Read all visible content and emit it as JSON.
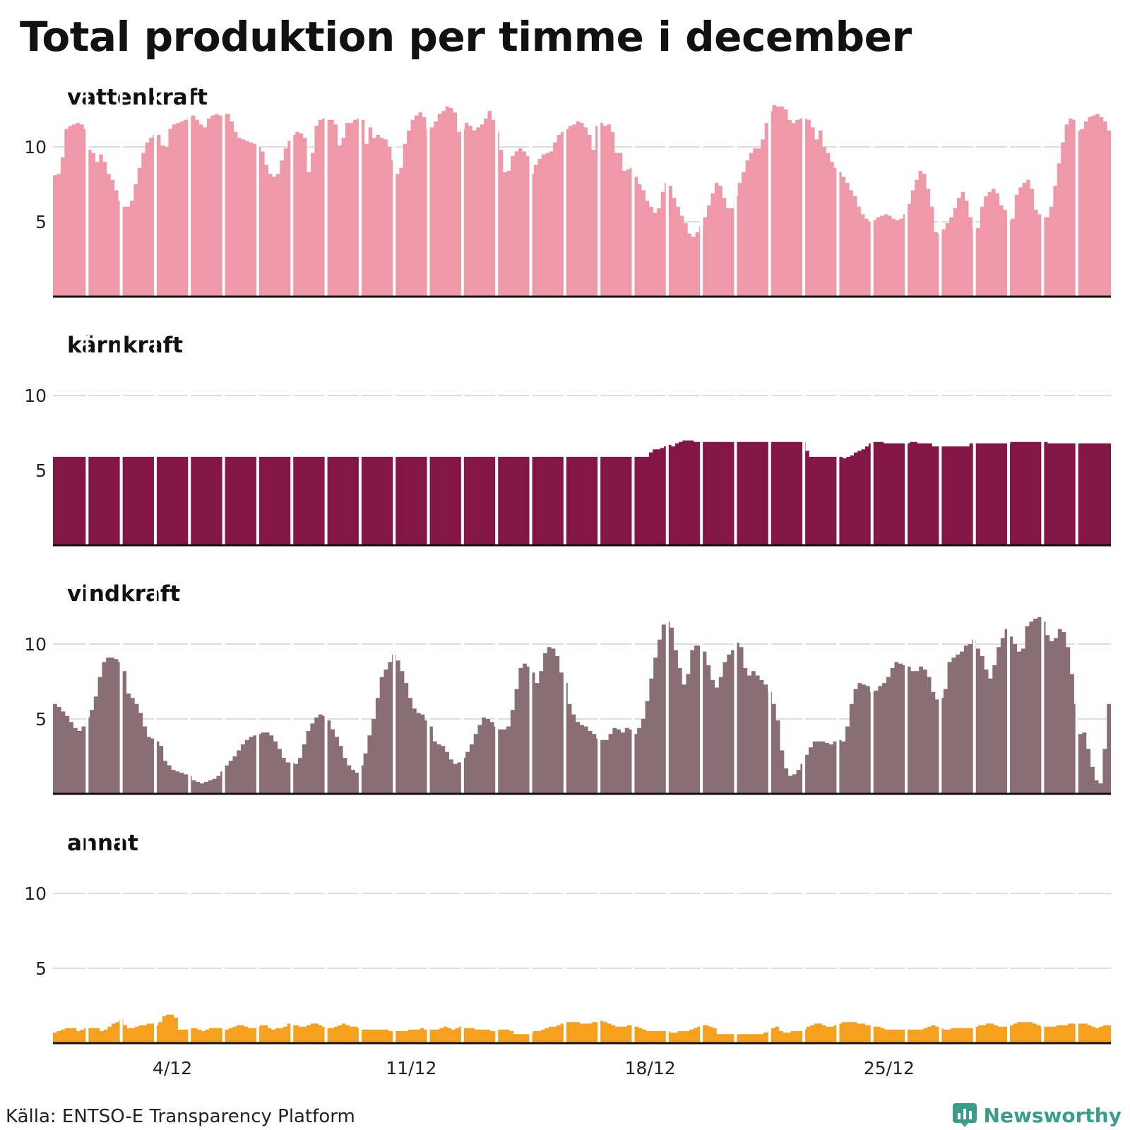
{
  "title": "Total produktion per timme i december",
  "source": "Källa: ENTSO-E Transparency Platform",
  "brand": "Newsworthy",
  "chart_data": {
    "type": "area",
    "x_unit": "day of December (hourly resolution, values sampled every 2 hours)",
    "xlim": [
      1,
      32
    ],
    "ylim": [
      0,
      13
    ],
    "y_ticks": [
      5,
      10
    ],
    "x_ticks": [
      {
        "value": 4.5,
        "label": "4/12"
      },
      {
        "value": 11.5,
        "label": "11/12"
      },
      {
        "value": 18.5,
        "label": "18/12"
      },
      {
        "value": 25.5,
        "label": "25/12"
      }
    ],
    "grid": true,
    "ylabel": "",
    "xlabel": "",
    "series": [
      {
        "name": "vattenkraft",
        "color": "#ef99a8",
        "values": [
          8.1,
          8.2,
          9.3,
          11.2,
          11.4,
          11.5,
          11.6,
          11.5,
          11.2,
          9.8,
          9.6,
          9.0,
          9.5,
          9.0,
          8.2,
          7.8,
          7.1,
          6.4,
          6.0,
          6.0,
          6.4,
          7.5,
          8.6,
          9.6,
          10.3,
          10.6,
          10.8,
          10.8,
          10.1,
          10.0,
          11.2,
          11.5,
          11.6,
          11.7,
          11.8,
          12.0,
          12.1,
          11.8,
          11.5,
          11.3,
          11.9,
          12.1,
          12.2,
          12.1,
          12.2,
          12.2,
          11.7,
          11.0,
          10.6,
          10.5,
          10.4,
          10.3,
          10.2,
          10.0,
          9.7,
          8.8,
          8.2,
          8.0,
          8.2,
          9.1,
          9.9,
          10.4,
          10.8,
          11.0,
          10.9,
          10.6,
          8.3,
          9.6,
          11.4,
          11.8,
          11.9,
          11.8,
          11.8,
          11.5,
          10.1,
          10.6,
          11.6,
          11.6,
          11.8,
          11.9,
          11.8,
          10.2,
          11.3,
          10.6,
          10.8,
          10.6,
          10.5,
          10.0,
          9.1,
          8.2,
          8.6,
          10.2,
          11.1,
          11.8,
          12.1,
          12.3,
          12.0,
          11.2,
          11.3,
          11.7,
          12.2,
          12.4,
          12.7,
          12.6,
          12.3,
          11.0,
          11.2,
          11.6,
          11.4,
          11.1,
          11.3,
          11.5,
          11.9,
          12.4,
          11.8,
          11.0,
          9.8,
          8.3,
          8.4,
          9.4,
          9.7,
          9.9,
          9.7,
          9.4,
          8.2,
          8.8,
          9.2,
          9.5,
          9.6,
          9.7,
          10.3,
          10.8,
          11.0,
          11.2,
          11.4,
          11.5,
          11.7,
          11.6,
          11.3,
          10.8,
          9.8,
          11.4,
          11.6,
          11.4,
          11.5,
          11.0,
          9.6,
          9.6,
          8.4,
          8.5,
          8.6,
          8.0,
          7.5,
          7.1,
          6.4,
          6.0,
          5.6,
          5.9,
          7.0,
          7.6,
          7.4,
          6.6,
          6.0,
          5.4,
          4.9,
          4.2,
          4.0,
          4.3,
          4.7,
          5.3,
          6.1,
          6.9,
          7.6,
          7.4,
          6.6,
          5.9,
          5.9,
          6.7,
          7.6,
          8.3,
          9.1,
          9.6,
          9.9,
          9.9,
          10.5,
          11.6,
          12.4,
          12.8,
          12.7,
          12.7,
          12.5,
          11.8,
          11.6,
          11.8,
          11.9,
          11.9,
          11.8,
          11.3,
          10.5,
          11.1,
          10.0,
          9.6,
          9.0,
          8.6,
          8.3,
          8.0,
          7.6,
          7.1,
          6.7,
          6.0,
          5.5,
          5.2,
          5.0,
          5.1,
          5.3,
          5.4,
          5.5,
          5.4,
          5.2,
          5.1,
          5.2,
          5.5,
          6.2,
          7.1,
          7.8,
          8.4,
          8.2,
          7.2,
          6.0,
          4.3,
          4.2,
          4.5,
          4.9,
          5.3,
          5.9,
          6.6,
          7.0,
          6.4,
          5.3,
          4.5,
          4.6,
          6.0,
          6.7,
          7.0,
          7.2,
          6.9,
          6.1,
          5.8,
          5.1,
          5.2,
          6.8,
          7.3,
          7.6,
          7.8,
          7.2,
          5.8,
          5.5,
          5.3,
          5.3,
          6.0,
          7.4,
          8.9,
          10.3,
          11.5,
          11.9,
          11.8,
          11.1,
          11.2,
          11.7,
          12.0,
          12.1,
          12.2,
          12.0,
          11.7,
          11.1
        ]
      },
      {
        "name": "kärnkraft",
        "color": "#841646",
        "values": [
          5.9,
          5.9,
          5.9,
          5.9,
          5.9,
          5.9,
          5.9,
          5.9,
          5.9,
          5.9,
          5.9,
          5.9,
          5.9,
          5.9,
          5.9,
          5.9,
          5.9,
          5.9,
          5.9,
          5.9,
          5.9,
          5.9,
          5.9,
          5.9,
          5.9,
          5.9,
          5.9,
          5.9,
          5.9,
          5.9,
          5.9,
          5.9,
          5.9,
          5.9,
          5.9,
          5.9,
          5.9,
          5.9,
          5.9,
          5.9,
          5.9,
          5.9,
          5.9,
          5.9,
          5.9,
          5.9,
          5.9,
          5.9,
          5.9,
          5.9,
          5.9,
          5.9,
          5.9,
          5.9,
          5.9,
          5.9,
          5.9,
          5.9,
          5.9,
          5.9,
          5.9,
          5.9,
          5.9,
          5.9,
          5.9,
          5.9,
          5.9,
          5.9,
          5.9,
          5.9,
          5.9,
          5.9,
          5.9,
          5.9,
          5.9,
          5.9,
          5.9,
          5.9,
          5.9,
          5.9,
          5.9,
          5.9,
          5.9,
          5.9,
          5.9,
          5.9,
          5.9,
          5.9,
          5.9,
          5.9,
          5.9,
          5.9,
          5.9,
          5.9,
          5.9,
          5.9,
          5.9,
          5.9,
          5.9,
          5.9,
          5.9,
          5.9,
          5.9,
          5.9,
          5.9,
          5.9,
          5.9,
          5.9,
          5.9,
          5.9,
          5.9,
          5.9,
          5.9,
          5.9,
          5.9,
          5.9,
          5.9,
          5.9,
          5.9,
          5.9,
          5.9,
          5.9,
          5.9,
          5.9,
          5.9,
          5.9,
          5.9,
          5.9,
          5.9,
          5.9,
          5.9,
          5.9,
          5.9,
          5.9,
          5.9,
          5.9,
          5.9,
          5.9,
          5.9,
          5.9,
          5.9,
          5.9,
          5.9,
          5.9,
          5.9,
          5.9,
          5.9,
          5.9,
          5.9,
          5.9,
          5.9,
          5.9,
          5.9,
          5.9,
          5.9,
          5.9,
          5.9,
          5.9,
          5.9,
          5.9,
          6.2,
          6.4,
          6.4,
          6.5,
          6.6,
          6.7,
          6.6,
          6.8,
          6.9,
          7.0,
          7.0,
          7.0,
          6.9,
          6.9,
          6.9,
          6.9,
          6.9,
          6.9,
          6.9,
          6.9,
          6.9,
          6.9,
          6.9,
          6.9,
          6.9,
          6.9,
          6.9,
          6.9,
          6.9,
          6.9,
          6.9,
          6.9,
          6.9,
          6.9,
          6.9,
          6.9,
          6.9,
          6.9,
          6.9,
          6.9,
          6.9,
          6.9,
          6.3,
          5.9,
          5.9,
          5.9,
          5.9,
          5.9,
          5.9,
          5.9,
          5.9,
          5.9,
          5.8,
          5.9,
          6.0,
          6.2,
          6.3,
          6.4,
          6.6,
          6.8,
          6.9,
          6.9,
          6.9,
          6.8,
          6.8,
          6.8,
          6.8,
          6.8,
          6.8,
          6.8,
          6.9,
          6.9,
          6.8,
          6.8,
          6.8,
          6.8,
          6.6,
          6.6,
          6.6,
          6.6,
          6.6,
          6.6,
          6.6,
          6.6,
          6.6,
          6.6,
          6.8,
          6.8,
          6.8,
          6.8,
          6.8,
          6.8,
          6.8,
          6.8,
          6.8,
          6.8,
          6.8,
          6.9,
          6.9,
          6.9,
          6.9,
          6.9,
          6.9,
          6.9,
          6.9,
          6.9,
          6.9,
          6.8,
          6.8,
          6.8,
          6.8,
          6.8,
          6.8,
          6.8,
          6.8,
          6.8,
          6.8,
          6.8,
          6.8,
          6.8,
          6.8,
          6.8,
          6.8,
          6.8
        ]
      },
      {
        "name": "vindkraft",
        "color": "#8a6e75",
        "values": [
          6.0,
          5.8,
          5.5,
          5.2,
          4.8,
          4.4,
          4.2,
          4.5,
          5.1,
          5.6,
          6.5,
          7.8,
          8.8,
          9.1,
          9.1,
          9.0,
          8.8,
          8.2,
          6.7,
          6.4,
          6.0,
          5.4,
          4.5,
          3.8,
          3.7,
          3.5,
          3.2,
          2.2,
          1.9,
          1.6,
          1.5,
          1.4,
          1.3,
          1.2,
          0.9,
          0.8,
          0.7,
          0.8,
          0.9,
          1.0,
          1.2,
          1.5,
          1.9,
          2.2,
          2.5,
          2.9,
          3.3,
          3.6,
          3.8,
          3.9,
          4.0,
          4.1,
          4.1,
          3.9,
          3.5,
          3.0,
          2.4,
          2.1,
          2.1,
          2.0,
          2.4,
          3.3,
          4.2,
          4.7,
          5.1,
          5.3,
          5.2,
          4.9,
          4.3,
          3.8,
          3.2,
          2.4,
          1.9,
          1.6,
          1.4,
          1.9,
          2.7,
          3.9,
          5.0,
          6.4,
          7.8,
          8.3,
          8.8,
          9.3,
          8.9,
          8.2,
          7.4,
          6.4,
          5.7,
          5.4,
          5.3,
          4.9,
          4.5,
          3.5,
          3.3,
          3.2,
          2.8,
          2.3,
          2.0,
          2.1,
          2.4,
          2.8,
          3.3,
          4.0,
          4.6,
          5.1,
          5.0,
          4.8,
          4.5,
          4.3,
          4.3,
          4.5,
          5.6,
          7.0,
          8.4,
          8.7,
          8.5,
          8.1,
          7.4,
          8.2,
          9.4,
          9.8,
          9.7,
          9.2,
          8.1,
          7.4,
          6.0,
          5.3,
          4.8,
          4.6,
          4.5,
          4.2,
          4.0,
          3.7,
          3.6,
          3.6,
          4.0,
          4.4,
          4.3,
          4.1,
          4.4,
          4.3,
          4.0,
          4.4,
          5.0,
          6.2,
          7.7,
          9.1,
          10.3,
          11.3,
          11.5,
          11.1,
          9.6,
          8.4,
          7.3,
          8.0,
          9.6,
          9.9,
          9.9,
          9.5,
          8.6,
          7.6,
          7.1,
          7.8,
          8.8,
          9.3,
          9.6,
          10.1,
          9.8,
          8.4,
          7.9,
          8.2,
          7.9,
          7.6,
          7.3,
          6.8,
          6.0,
          4.9,
          2.9,
          1.7,
          1.2,
          1.3,
          1.6,
          2.0,
          2.6,
          3.1,
          3.5,
          3.5,
          3.5,
          3.4,
          3.3,
          3.5,
          3.6,
          3.5,
          4.5,
          6.0,
          7.0,
          7.4,
          7.3,
          7.2,
          6.8,
          6.9,
          7.2,
          7.4,
          7.8,
          8.4,
          8.8,
          8.7,
          8.6,
          8.5,
          8.2,
          8.2,
          8.5,
          8.3,
          7.8,
          6.8,
          6.3,
          6.4,
          7.0,
          8.8,
          9.1,
          9.3,
          9.5,
          9.9,
          10.0,
          10.3,
          9.7,
          9.2,
          8.3,
          7.7,
          8.6,
          9.8,
          10.4,
          11.0,
          10.5,
          10.0,
          9.5,
          9.7,
          11.2,
          11.5,
          11.7,
          11.8,
          11.5,
          10.6,
          10.2,
          10.4,
          11.0,
          10.8,
          9.8,
          8.0,
          6.0,
          4.0,
          4.1,
          3.0,
          1.8,
          0.9,
          0.7,
          3.0,
          6.0
        ]
      },
      {
        "name": "annat",
        "color": "#f5a01e",
        "values": [
          0.7,
          0.8,
          0.9,
          1.0,
          1.0,
          1.0,
          0.8,
          0.9,
          1.0,
          1.0,
          1.0,
          1.0,
          0.8,
          0.9,
          1.1,
          1.3,
          1.4,
          1.6,
          1.2,
          1.0,
          1.0,
          1.1,
          1.2,
          1.2,
          1.3,
          1.3,
          1.2,
          1.4,
          1.8,
          1.9,
          1.9,
          1.7,
          0.9,
          0.9,
          0.9,
          1.0,
          1.0,
          0.9,
          0.8,
          0.9,
          1.0,
          1.0,
          1.0,
          1.0,
          0.9,
          1.0,
          1.1,
          1.2,
          1.2,
          1.1,
          1.0,
          1.0,
          1.1,
          1.2,
          1.2,
          1.0,
          0.9,
          1.0,
          1.0,
          1.1,
          1.3,
          1.2,
          1.2,
          1.1,
          1.1,
          1.2,
          1.3,
          1.3,
          1.2,
          1.1,
          1.0,
          1.0,
          1.1,
          1.2,
          1.3,
          1.2,
          1.1,
          1.1,
          1.0,
          0.9,
          0.9,
          0.9,
          0.9,
          0.9,
          0.9,
          0.9,
          0.8,
          0.8,
          0.8,
          0.8,
          0.8,
          0.9,
          0.9,
          0.9,
          1.0,
          0.9,
          0.9,
          0.9,
          0.9,
          1.0,
          1.1,
          1.0,
          0.9,
          1.0,
          1.1,
          1.0,
          1.0,
          1.0,
          0.9,
          0.9,
          0.9,
          0.9,
          0.8,
          0.8,
          0.9,
          0.9,
          0.9,
          0.8,
          0.6,
          0.6,
          0.6,
          0.6,
          0.7,
          0.8,
          0.8,
          0.9,
          1.0,
          1.1,
          1.1,
          1.2,
          1.3,
          1.4,
          1.4,
          1.4,
          1.4,
          1.3,
          1.3,
          1.3,
          1.4,
          1.4,
          1.5,
          1.4,
          1.3,
          1.2,
          1.1,
          1.1,
          1.1,
          1.2,
          1.2,
          1.1,
          1.0,
          0.9,
          0.8,
          0.8,
          0.8,
          0.8,
          0.8,
          0.8,
          0.7,
          0.7,
          0.8,
          0.8,
          0.8,
          0.9,
          1.0,
          1.1,
          1.2,
          1.2,
          1.1,
          1.0,
          0.6,
          0.6,
          0.6,
          0.6,
          0.6,
          0.6,
          0.6,
          0.6,
          0.6,
          0.6,
          0.6,
          0.6,
          0.7,
          0.8,
          1.0,
          1.1,
          0.8,
          0.7,
          0.7,
          0.8,
          0.8,
          0.8,
          0.9,
          1.1,
          1.2,
          1.3,
          1.3,
          1.2,
          1.1,
          1.1,
          1.2,
          1.3,
          1.4,
          1.4,
          1.4,
          1.4,
          1.3,
          1.3,
          1.2,
          1.2,
          1.1,
          1.1,
          1.0,
          0.9,
          0.9,
          0.9,
          0.9,
          0.9,
          0.9,
          0.9,
          0.9,
          0.9,
          0.9,
          1.0,
          1.1,
          1.2,
          1.1,
          1.0,
          0.9,
          0.9,
          1.0,
          1.0,
          1.0,
          1.0,
          1.0,
          1.0,
          1.1,
          1.2,
          1.2,
          1.3,
          1.3,
          1.2,
          1.1,
          1.1,
          1.1,
          1.2,
          1.3,
          1.4,
          1.4,
          1.4,
          1.4,
          1.3,
          1.2,
          1.1,
          1.1,
          1.1,
          1.1,
          1.2,
          1.2,
          1.2,
          1.3,
          1.3,
          1.3,
          1.3,
          1.3,
          1.2,
          1.1,
          1.0,
          1.1,
          1.2,
          1.2
        ]
      }
    ]
  }
}
